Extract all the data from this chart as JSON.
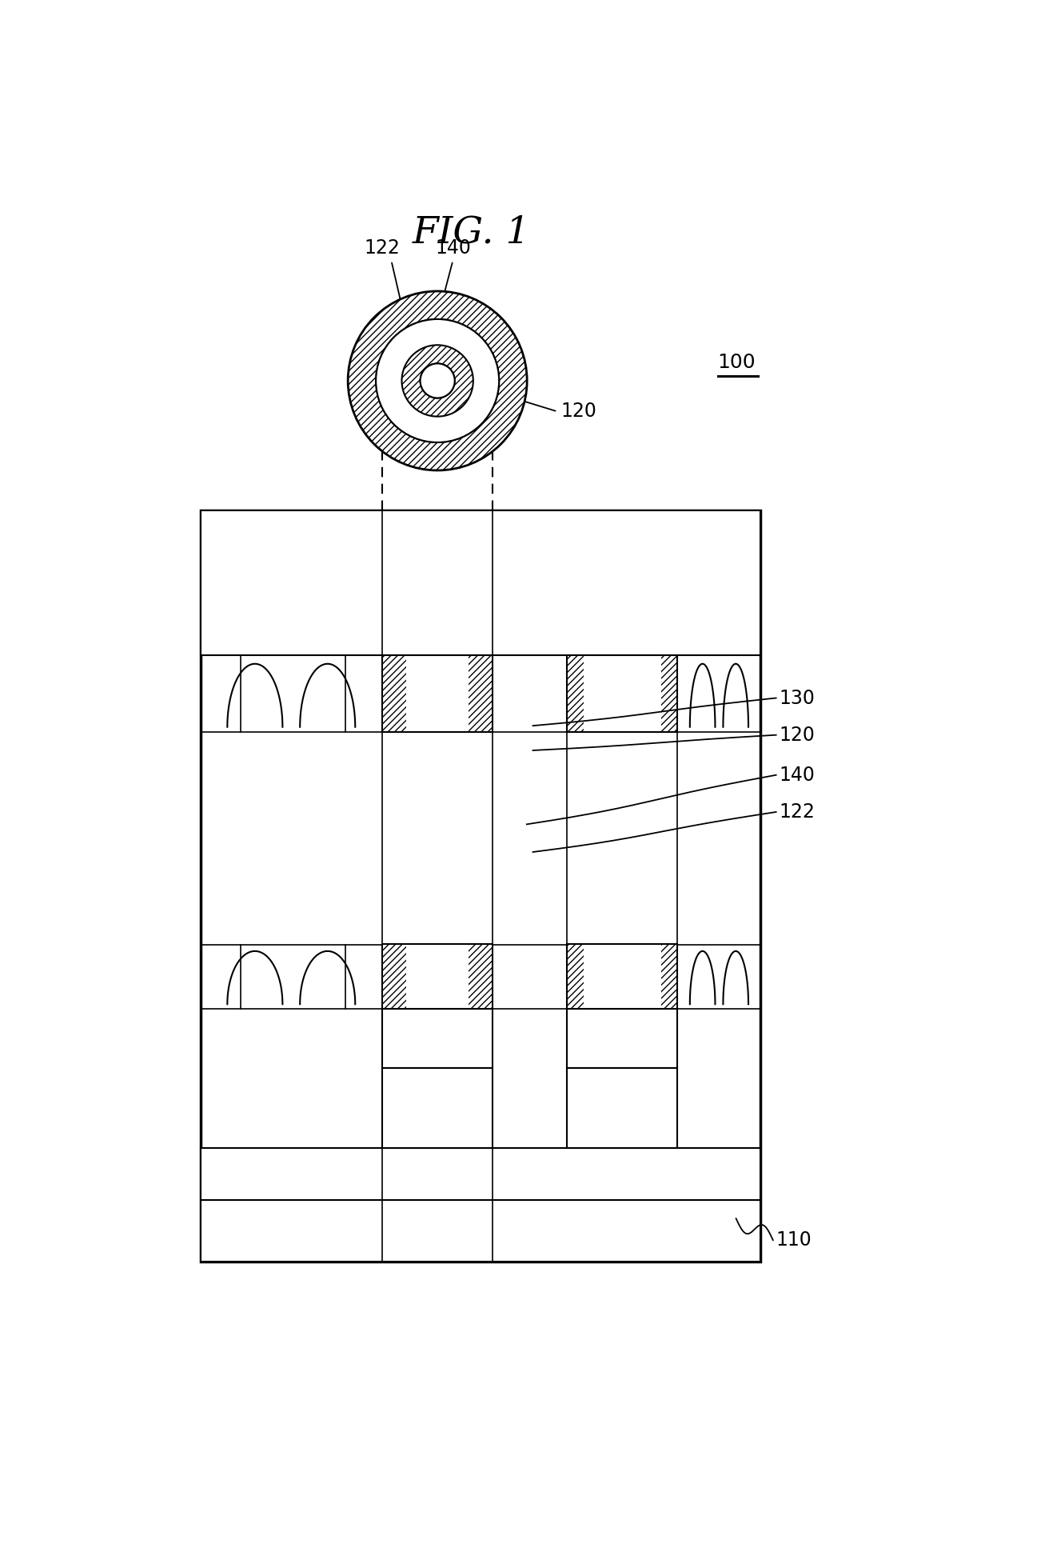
{
  "title": "FIG. 1",
  "label_100": "100",
  "label_110": "110",
  "label_120": "120",
  "label_122": "122",
  "label_130": "130",
  "label_140": "140",
  "bg_color": "#ffffff",
  "line_color": "#000000",
  "fig_width": 13.02,
  "fig_height": 19.45,
  "lw_main": 2.0,
  "lw_thin": 1.5
}
